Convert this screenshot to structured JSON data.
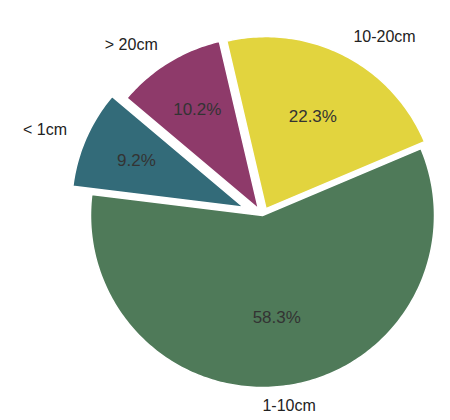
{
  "chart_data": {
    "type": "pie",
    "categories": [
      "< 1cm",
      "> 20cm",
      "10-20cm",
      "1-10cm"
    ],
    "values": [
      9.2,
      10.2,
      22.3,
      58.3
    ],
    "value_labels": [
      "9.2%",
      "10.2%",
      "22.3%",
      "58.3%"
    ],
    "colors": [
      "#336b79",
      "#8e3a6a",
      "#e2d43e",
      "#4f7a59"
    ],
    "data_labels": true
  }
}
